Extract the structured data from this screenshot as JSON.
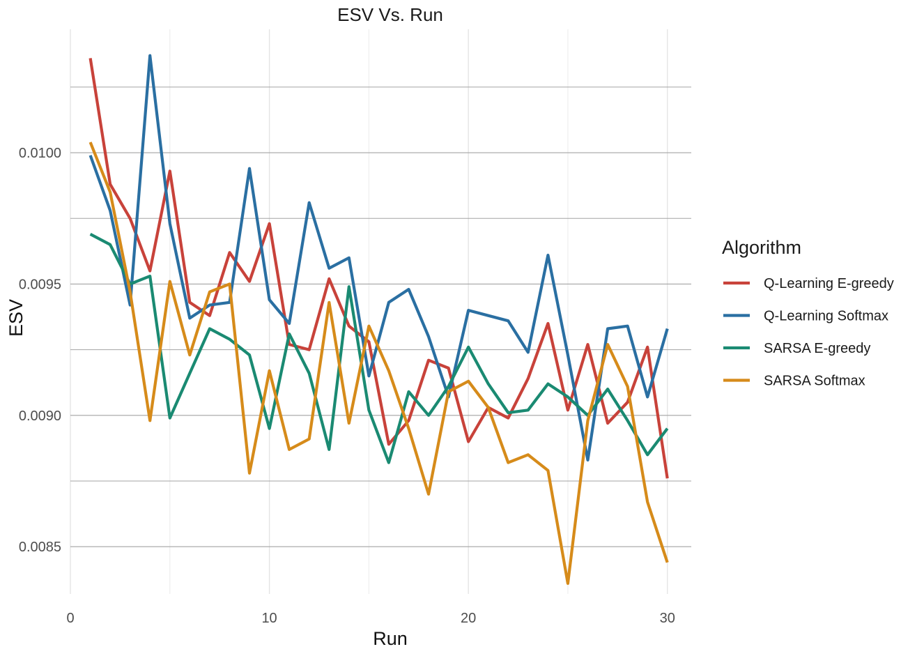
{
  "chart_data": {
    "type": "line",
    "title": "ESV Vs. Run",
    "xlabel": "Run",
    "ylabel": "ESV",
    "xlim": [
      0,
      31.2
    ],
    "ylim": [
      0.00832,
      0.01047
    ],
    "x_ticks": [
      0,
      10,
      20,
      30
    ],
    "x_tick_labels": [
      "0",
      "10",
      "20",
      "30"
    ],
    "y_ticks": [
      0.0085,
      0.009,
      0.0095,
      0.01
    ],
    "y_tick_labels": [
      "0.0085",
      "0.0090",
      "0.0095",
      "0.0100"
    ],
    "y_minor_ticks": [
      0.00875,
      0.00925,
      0.00975,
      0.01025
    ],
    "x_minor_ticks": [
      5,
      15,
      25
    ],
    "grid": true,
    "legend_title": "Algorithm",
    "legend_position": "right",
    "x": [
      1,
      2,
      3,
      4,
      5,
      6,
      7,
      8,
      9,
      10,
      11,
      12,
      13,
      14,
      15,
      16,
      17,
      18,
      19,
      20,
      21,
      22,
      23,
      24,
      25,
      26,
      27,
      28,
      29,
      30
    ],
    "series": [
      {
        "name": "Q-Learning E-greedy",
        "color": "#c8423a",
        "values": [
          0.01036,
          0.00988,
          0.00975,
          0.00955,
          0.00993,
          0.00943,
          0.00938,
          0.00962,
          0.00951,
          0.00973,
          0.00927,
          0.00925,
          0.00952,
          0.00934,
          0.00928,
          0.00889,
          0.00898,
          0.00921,
          0.00918,
          0.0089,
          0.00903,
          0.00899,
          0.00914,
          0.00935,
          0.00902,
          0.00927,
          0.00897,
          0.00905,
          0.00926,
          0.00876
        ]
      },
      {
        "name": "Q-Learning Softmax",
        "color": "#2a6fa2",
        "values": [
          0.00999,
          0.00978,
          0.00942,
          0.01037,
          0.00973,
          0.00937,
          0.00942,
          0.00943,
          0.00994,
          0.00944,
          0.00935,
          0.00981,
          0.00956,
          0.0096,
          0.00915,
          0.00943,
          0.00948,
          0.0093,
          0.00907,
          0.0094,
          0.00938,
          0.00936,
          0.00924,
          0.00961,
          0.00923,
          0.00883,
          0.00933,
          0.00934,
          0.00907,
          0.00933
        ]
      },
      {
        "name": "SARSA E-greedy",
        "color": "#1a8a72",
        "values": [
          0.00969,
          0.00965,
          0.0095,
          0.00953,
          0.00899,
          0.00916,
          0.00933,
          0.00929,
          0.00923,
          0.00895,
          0.00931,
          0.00916,
          0.00887,
          0.00949,
          0.00902,
          0.00882,
          0.00909,
          0.009,
          0.00911,
          0.00926,
          0.00912,
          0.00901,
          0.00902,
          0.00912,
          0.00907,
          0.009,
          0.0091,
          0.00898,
          0.00885,
          0.00895
        ]
      },
      {
        "name": "SARSA Softmax",
        "color": "#d68b1a",
        "values": [
          0.01004,
          0.00985,
          0.00947,
          0.00898,
          0.00951,
          0.00923,
          0.00947,
          0.0095,
          0.00878,
          0.00917,
          0.00887,
          0.00891,
          0.00943,
          0.00897,
          0.00934,
          0.00917,
          0.00895,
          0.0087,
          0.00909,
          0.00913,
          0.00903,
          0.00882,
          0.00885,
          0.00879,
          0.00836,
          0.00898,
          0.00927,
          0.00911,
          0.00867,
          0.00844
        ]
      }
    ]
  }
}
